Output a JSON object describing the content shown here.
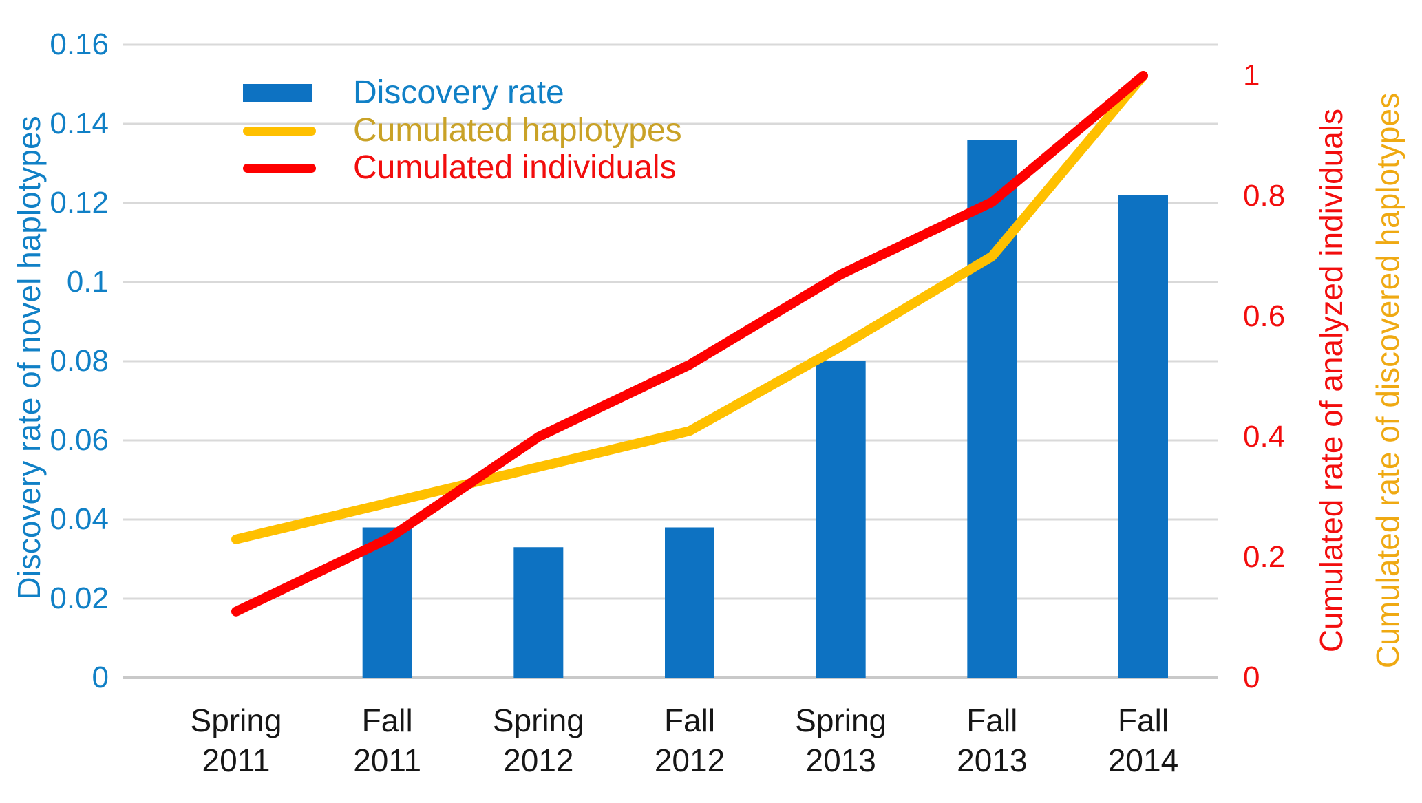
{
  "chart_data": {
    "type": "combo",
    "title": "",
    "categories": [
      {
        "season": "Spring",
        "year": "2011"
      },
      {
        "season": "Fall",
        "year": "2011"
      },
      {
        "season": "Spring",
        "year": "2012"
      },
      {
        "season": "Fall",
        "year": "2012"
      },
      {
        "season": "Spring",
        "year": "2013"
      },
      {
        "season": "Fall",
        "year": "2013"
      },
      {
        "season": "Fall",
        "year": "2014"
      }
    ],
    "series": [
      {
        "name": "Discovery rate",
        "type": "bar",
        "axis": "left",
        "color": "#0d72c2",
        "values": [
          null,
          0.038,
          0.033,
          0.038,
          0.08,
          0.136,
          0.122
        ]
      },
      {
        "name": "Cumulated haplotypes",
        "type": "line",
        "axis": "right",
        "color": "#ffc000",
        "label_color": "#c9a227",
        "values": [
          0.23,
          0.29,
          0.35,
          0.41,
          0.55,
          0.7,
          1.0
        ]
      },
      {
        "name": "Cumulated individuals",
        "type": "line",
        "axis": "right",
        "color": "#fe0000",
        "label_color": "#f20d0d",
        "values": [
          0.11,
          0.23,
          0.4,
          0.52,
          0.67,
          0.79,
          1.0
        ]
      }
    ],
    "axes": {
      "left": {
        "title": "Discovery rate of novel haplotypes",
        "color": "#1080c6",
        "min": 0,
        "max": 0.16,
        "ticks": [
          {
            "label": "0.16",
            "value": 0.16
          },
          {
            "label": "0.14",
            "value": 0.14
          },
          {
            "label": "0.12",
            "value": 0.12
          },
          {
            "label": "0.1",
            "value": 0.1
          },
          {
            "label": "0.08",
            "value": 0.08
          },
          {
            "label": "0.06",
            "value": 0.06
          },
          {
            "label": "0.04",
            "value": 0.04
          },
          {
            "label": "0.02",
            "value": 0.02
          },
          {
            "label": "0",
            "value": 0
          }
        ]
      },
      "right_individuals": {
        "title": "Cumulated rate of analyzed individuals",
        "color": "#f20d0d",
        "min": 0,
        "max": 1,
        "ticks": [
          {
            "label": "1",
            "value": 1.0
          },
          {
            "label": "0.8",
            "value": 0.8
          },
          {
            "label": "0.6",
            "value": 0.6
          },
          {
            "label": "0.4",
            "value": 0.4
          },
          {
            "label": "0.2",
            "value": 0.2
          },
          {
            "label": "0",
            "value": 0
          }
        ]
      },
      "right_haplotypes": {
        "title": "Cumulated rate of discovered haplotypes",
        "color": "#efa912"
      }
    },
    "grid": {
      "on": true,
      "color": "#d9d9d9",
      "baseline_color": "#c9c9c9"
    },
    "legend": {
      "position": "top-left-inside"
    }
  }
}
